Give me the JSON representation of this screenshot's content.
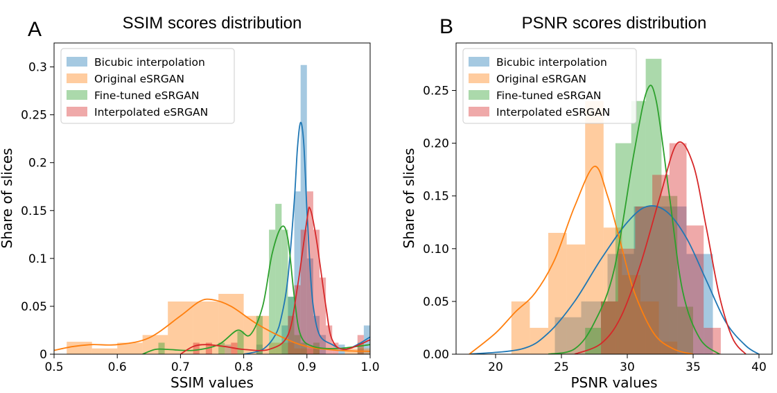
{
  "chart_data": [
    {
      "panel": "A",
      "type": "histogram",
      "title": "SSIM scores distribution",
      "xlabel": "SSIM values",
      "ylabel": "Share of slices",
      "xlim": [
        0.5,
        1.0
      ],
      "ylim": [
        0,
        0.325
      ],
      "xticks": [
        0.5,
        0.6,
        0.7,
        0.8,
        0.9,
        1.0
      ],
      "xtick_labels": [
        "0.5",
        "0.6",
        "0.7",
        "0.8",
        "0.9",
        "1.0"
      ],
      "yticks": [
        0,
        0.05,
        0.1,
        0.15,
        0.2,
        0.25,
        0.3
      ],
      "ytick_labels": [
        "0",
        "0.05",
        "0.1",
        "0.15",
        "0.2",
        "0.25",
        "0.3"
      ],
      "legend_position": "top-left",
      "series": [
        {
          "name": "Bicubic interpolation",
          "color": "#1f77b4",
          "bins": [
            [
              0.77,
              0.78,
              0.01
            ],
            [
              0.82,
              0.83,
              0.01
            ],
            [
              0.86,
              0.87,
              0.03
            ],
            [
              0.87,
              0.88,
              0.06
            ],
            [
              0.88,
              0.89,
              0.17
            ],
            [
              0.89,
              0.9,
              0.302
            ],
            [
              0.9,
              0.91,
              0.1
            ],
            [
              0.91,
              0.92,
              0.04
            ],
            [
              0.92,
              0.93,
              0.02
            ],
            [
              0.95,
              0.96,
              0.01
            ],
            [
              0.99,
              1.0,
              0.03
            ]
          ],
          "kde": [
            [
              0.8,
              0.0
            ],
            [
              0.83,
              0.005
            ],
            [
              0.85,
              0.02
            ],
            [
              0.86,
              0.04
            ],
            [
              0.87,
              0.08
            ],
            [
              0.88,
              0.16
            ],
            [
              0.885,
              0.215
            ],
            [
              0.89,
              0.242
            ],
            [
              0.895,
              0.22
            ],
            [
              0.9,
              0.15
            ],
            [
              0.905,
              0.09
            ],
            [
              0.91,
              0.05
            ],
            [
              0.92,
              0.02
            ],
            [
              0.94,
              0.01
            ],
            [
              0.96,
              0.005
            ],
            [
              0.98,
              0.01
            ],
            [
              1.0,
              0.018
            ]
          ]
        },
        {
          "name": "Original eSRGAN",
          "color": "#ff7f0e",
          "bins": [
            [
              0.52,
              0.56,
              0.013
            ],
            [
              0.56,
              0.6,
              0.006
            ],
            [
              0.6,
              0.64,
              0.012
            ],
            [
              0.64,
              0.68,
              0.02
            ],
            [
              0.68,
              0.72,
              0.055
            ],
            [
              0.72,
              0.76,
              0.055
            ],
            [
              0.76,
              0.8,
              0.063
            ],
            [
              0.8,
              0.84,
              0.04
            ],
            [
              0.84,
              0.88,
              0.012
            ],
            [
              0.88,
              0.92,
              0.006
            ],
            [
              0.96,
              1.0,
              0.006
            ]
          ],
          "kde": [
            [
              0.5,
              0.004
            ],
            [
              0.53,
              0.008
            ],
            [
              0.56,
              0.01
            ],
            [
              0.6,
              0.01
            ],
            [
              0.65,
              0.017
            ],
            [
              0.7,
              0.04
            ],
            [
              0.73,
              0.055
            ],
            [
              0.75,
              0.057
            ],
            [
              0.78,
              0.05
            ],
            [
              0.82,
              0.032
            ],
            [
              0.86,
              0.018
            ],
            [
              0.9,
              0.008
            ],
            [
              0.95,
              0.004
            ],
            [
              1.0,
              0.003
            ]
          ]
        },
        {
          "name": "Fine-tuned eSRGAN",
          "color": "#2ca02c",
          "bins": [
            [
              0.665,
              0.675,
              0.012
            ],
            [
              0.76,
              0.77,
              0.012
            ],
            [
              0.79,
              0.8,
              0.024
            ],
            [
              0.82,
              0.83,
              0.04
            ],
            [
              0.84,
              0.85,
              0.13
            ],
            [
              0.85,
              0.86,
              0.157
            ],
            [
              0.86,
              0.87,
              0.13
            ],
            [
              0.87,
              0.88,
              0.06
            ],
            [
              0.88,
              0.89,
              0.02
            ],
            [
              0.89,
              0.9,
              0.012
            ],
            [
              0.91,
              0.92,
              0.012
            ],
            [
              0.98,
              0.99,
              0.012
            ]
          ],
          "kde": [
            [
              0.64,
              0.0
            ],
            [
              0.66,
              0.005
            ],
            [
              0.68,
              0.005
            ],
            [
              0.72,
              0.004
            ],
            [
              0.76,
              0.01
            ],
            [
              0.79,
              0.025
            ],
            [
              0.81,
              0.02
            ],
            [
              0.83,
              0.05
            ],
            [
              0.845,
              0.105
            ],
            [
              0.86,
              0.133
            ],
            [
              0.87,
              0.12
            ],
            [
              0.88,
              0.06
            ],
            [
              0.89,
              0.02
            ],
            [
              0.91,
              0.008
            ],
            [
              0.95,
              0.006
            ],
            [
              1.0,
              0.01
            ]
          ]
        },
        {
          "name": "Interpolated eSRGAN",
          "color": "#d62728",
          "bins": [
            [
              0.72,
              0.73,
              0.012
            ],
            [
              0.74,
              0.75,
              0.012
            ],
            [
              0.78,
              0.79,
              0.012
            ],
            [
              0.87,
              0.88,
              0.04
            ],
            [
              0.88,
              0.89,
              0.072
            ],
            [
              0.89,
              0.9,
              0.13
            ],
            [
              0.9,
              0.91,
              0.17
            ],
            [
              0.91,
              0.92,
              0.13
            ],
            [
              0.92,
              0.93,
              0.08
            ],
            [
              0.93,
              0.94,
              0.03
            ],
            [
              0.94,
              0.95,
              0.012
            ],
            [
              0.98,
              0.99,
              0.02
            ]
          ],
          "kde": [
            [
              0.7,
              0.0
            ],
            [
              0.72,
              0.008
            ],
            [
              0.74,
              0.01
            ],
            [
              0.77,
              0.008
            ],
            [
              0.8,
              0.005
            ],
            [
              0.84,
              0.005
            ],
            [
              0.87,
              0.02
            ],
            [
              0.885,
              0.07
            ],
            [
              0.9,
              0.14
            ],
            [
              0.905,
              0.152
            ],
            [
              0.915,
              0.12
            ],
            [
              0.93,
              0.05
            ],
            [
              0.94,
              0.015
            ],
            [
              0.96,
              0.005
            ],
            [
              1.0,
              0.015
            ]
          ]
        }
      ]
    },
    {
      "panel": "B",
      "type": "histogram",
      "title": "PSNR scores distribution",
      "xlabel": "PSNR values",
      "ylabel": "Share of slices",
      "xlim": [
        17,
        41
      ],
      "ylim": [
        0,
        0.295
      ],
      "xticks": [
        20,
        25,
        30,
        35,
        40
      ],
      "xtick_labels": [
        "20",
        "25",
        "30",
        "35",
        "40"
      ],
      "yticks": [
        0,
        0.05,
        0.1,
        0.15,
        0.2,
        0.25
      ],
      "ytick_labels": [
        "0.00",
        "0.05",
        "0.10",
        "0.15",
        "0.20",
        "0.25"
      ],
      "legend_position": "top-left",
      "series": [
        {
          "name": "Bicubic interpolation",
          "color": "#1f77b4",
          "bins": [
            [
              24.5,
              26.5,
              0.035
            ],
            [
              26.5,
              28.5,
              0.05
            ],
            [
              28.5,
              30.5,
              0.095
            ],
            [
              30.5,
              32.5,
              0.14
            ],
            [
              32.5,
              34.5,
              0.14
            ],
            [
              34.5,
              36.5,
              0.095
            ]
          ],
          "kde": [
            [
              18,
              0.0
            ],
            [
              22,
              0.005
            ],
            [
              24,
              0.02
            ],
            [
              26,
              0.05
            ],
            [
              28,
              0.09
            ],
            [
              30,
              0.125
            ],
            [
              31.5,
              0.14
            ],
            [
              33,
              0.135
            ],
            [
              34.5,
              0.11
            ],
            [
              36,
              0.07
            ],
            [
              37.5,
              0.03
            ],
            [
              39,
              0.008
            ],
            [
              40,
              0.0
            ]
          ]
        },
        {
          "name": "Original eSRGAN",
          "color": "#ff7f0e",
          "bins": [
            [
              21.2,
              22.6,
              0.05
            ],
            [
              22.6,
              24.0,
              0.025
            ],
            [
              24.0,
              25.4,
              0.115
            ],
            [
              25.4,
              26.8,
              0.104
            ],
            [
              26.8,
              28.2,
              0.24
            ],
            [
              28.2,
              29.6,
              0.12
            ],
            [
              29.6,
              31.0,
              0.075
            ],
            [
              31.0,
              32.4,
              0.05
            ],
            [
              32.4,
              33.8,
              0.012
            ]
          ],
          "kde": [
            [
              18,
              0.0
            ],
            [
              20,
              0.02
            ],
            [
              21.5,
              0.04
            ],
            [
              23,
              0.058
            ],
            [
              24.5,
              0.09
            ],
            [
              26,
              0.14
            ],
            [
              27.5,
              0.178
            ],
            [
              28.5,
              0.15
            ],
            [
              29.5,
              0.105
            ],
            [
              30.5,
              0.06
            ],
            [
              32,
              0.02
            ],
            [
              33.5,
              0.005
            ],
            [
              35,
              0.0
            ]
          ]
        },
        {
          "name": "Fine-tuned eSRGAN",
          "color": "#2ca02c",
          "bins": [
            [
              26.8,
              28.0,
              0.025
            ],
            [
              28.0,
              29.1,
              0.05
            ],
            [
              29.1,
              30.3,
              0.2
            ],
            [
              30.3,
              31.4,
              0.24
            ],
            [
              31.4,
              32.6,
              0.28
            ],
            [
              32.6,
              33.8,
              0.15
            ],
            [
              33.8,
              35.0,
              0.045
            ]
          ],
          "kde": [
            [
              24,
              0.0
            ],
            [
              26,
              0.005
            ],
            [
              27.5,
              0.03
            ],
            [
              29,
              0.08
            ],
            [
              30.5,
              0.19
            ],
            [
              31.5,
              0.25
            ],
            [
              32.2,
              0.24
            ],
            [
              33.2,
              0.15
            ],
            [
              34.2,
              0.06
            ],
            [
              35.5,
              0.015
            ],
            [
              37,
              0.0
            ]
          ]
        },
        {
          "name": "Interpolated eSRGAN",
          "color": "#d62728",
          "bins": [
            [
              28.0,
              29.3,
              0.05
            ],
            [
              29.3,
              30.6,
              0.1
            ],
            [
              30.6,
              31.9,
              0.14
            ],
            [
              31.9,
              33.2,
              0.17
            ],
            [
              33.2,
              34.5,
              0.2
            ],
            [
              34.5,
              35.8,
              0.122
            ],
            [
              35.8,
              37.1,
              0.025
            ]
          ],
          "kde": [
            [
              26,
              0.0
            ],
            [
              28,
              0.01
            ],
            [
              29.5,
              0.035
            ],
            [
              31,
              0.085
            ],
            [
              32.5,
              0.15
            ],
            [
              33.8,
              0.2
            ],
            [
              35,
              0.18
            ],
            [
              36,
              0.12
            ],
            [
              37,
              0.055
            ],
            [
              38,
              0.015
            ],
            [
              39,
              0.0
            ]
          ]
        }
      ]
    }
  ]
}
